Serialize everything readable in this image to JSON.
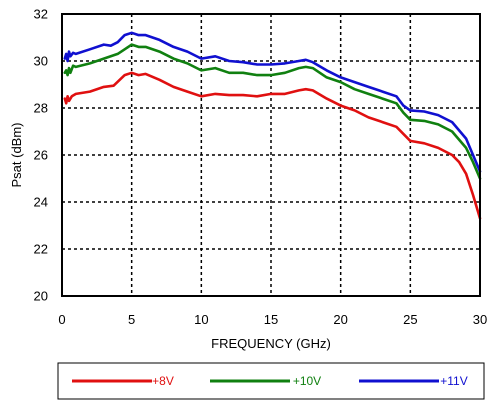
{
  "chart_data": {
    "type": "line",
    "title": "",
    "xlabel": "FREQUENCY (GHz)",
    "ylabel": "Psat (dBm)",
    "xlim": [
      0,
      30
    ],
    "ylim": [
      20,
      32
    ],
    "xticks": [
      0,
      5,
      10,
      15,
      20,
      25,
      30
    ],
    "yticks": [
      20,
      22,
      24,
      26,
      28,
      30,
      32
    ],
    "grid": true,
    "legend_position": "bottom",
    "series": [
      {
        "name": "+8V",
        "color": "#e01010",
        "points": [
          [
            0.2,
            28.4
          ],
          [
            0.3,
            28.2
          ],
          [
            0.4,
            28.5
          ],
          [
            0.5,
            28.3
          ],
          [
            0.7,
            28.5
          ],
          [
            1.0,
            28.6
          ],
          [
            2.0,
            28.7
          ],
          [
            3.0,
            28.9
          ],
          [
            3.7,
            28.95
          ],
          [
            4.5,
            29.4
          ],
          [
            5.0,
            29.5
          ],
          [
            5.5,
            29.4
          ],
          [
            6.0,
            29.45
          ],
          [
            7.0,
            29.2
          ],
          [
            8.0,
            28.9
          ],
          [
            9.0,
            28.7
          ],
          [
            10.0,
            28.5
          ],
          [
            11.0,
            28.6
          ],
          [
            12.0,
            28.55
          ],
          [
            13.0,
            28.55
          ],
          [
            14.0,
            28.5
          ],
          [
            15.0,
            28.6
          ],
          [
            16.0,
            28.6
          ],
          [
            17.0,
            28.75
          ],
          [
            17.5,
            28.8
          ],
          [
            18.0,
            28.75
          ],
          [
            19.0,
            28.4
          ],
          [
            20.0,
            28.1
          ],
          [
            21.0,
            27.9
          ],
          [
            22.0,
            27.6
          ],
          [
            23.0,
            27.4
          ],
          [
            24.0,
            27.2
          ],
          [
            24.5,
            26.9
          ],
          [
            25.0,
            26.6
          ],
          [
            26.0,
            26.5
          ],
          [
            27.0,
            26.3
          ],
          [
            28.0,
            26.0
          ],
          [
            28.5,
            25.7
          ],
          [
            29.0,
            25.2
          ],
          [
            29.5,
            24.3
          ],
          [
            30.0,
            23.3
          ]
        ]
      },
      {
        "name": "+10V",
        "color": "#108010",
        "points": [
          [
            0.2,
            29.5
          ],
          [
            0.3,
            29.6
          ],
          [
            0.4,
            29.4
          ],
          [
            0.5,
            29.7
          ],
          [
            0.6,
            29.5
          ],
          [
            0.8,
            29.8
          ],
          [
            1.0,
            29.75
          ],
          [
            2.0,
            29.9
          ],
          [
            3.0,
            30.1
          ],
          [
            4.0,
            30.3
          ],
          [
            4.5,
            30.5
          ],
          [
            5.0,
            30.7
          ],
          [
            5.5,
            30.6
          ],
          [
            6.0,
            30.6
          ],
          [
            7.0,
            30.4
          ],
          [
            8.0,
            30.1
          ],
          [
            9.0,
            29.9
          ],
          [
            10.0,
            29.6
          ],
          [
            11.0,
            29.7
          ],
          [
            12.0,
            29.5
          ],
          [
            13.0,
            29.5
          ],
          [
            14.0,
            29.4
          ],
          [
            15.0,
            29.4
          ],
          [
            16.0,
            29.5
          ],
          [
            17.0,
            29.7
          ],
          [
            17.5,
            29.75
          ],
          [
            18.0,
            29.7
          ],
          [
            19.0,
            29.3
          ],
          [
            20.0,
            29.1
          ],
          [
            21.0,
            28.8
          ],
          [
            22.0,
            28.6
          ],
          [
            23.0,
            28.4
          ],
          [
            24.0,
            28.2
          ],
          [
            24.5,
            27.8
          ],
          [
            25.0,
            27.5
          ],
          [
            26.0,
            27.45
          ],
          [
            27.0,
            27.3
          ],
          [
            28.0,
            27.0
          ],
          [
            29.0,
            26.3
          ],
          [
            29.5,
            25.7
          ],
          [
            30.0,
            25.0
          ]
        ]
      },
      {
        "name": "+11V",
        "color": "#1010d0",
        "points": [
          [
            0.2,
            30.1
          ],
          [
            0.3,
            30.3
          ],
          [
            0.4,
            30.0
          ],
          [
            0.5,
            30.4
          ],
          [
            0.6,
            30.2
          ],
          [
            0.8,
            30.35
          ],
          [
            1.0,
            30.3
          ],
          [
            2.0,
            30.5
          ],
          [
            3.0,
            30.7
          ],
          [
            3.5,
            30.65
          ],
          [
            4.0,
            30.8
          ],
          [
            4.5,
            31.1
          ],
          [
            5.0,
            31.2
          ],
          [
            5.5,
            31.1
          ],
          [
            6.0,
            31.1
          ],
          [
            7.0,
            30.9
          ],
          [
            8.0,
            30.6
          ],
          [
            9.0,
            30.4
          ],
          [
            10.0,
            30.1
          ],
          [
            11.0,
            30.2
          ],
          [
            12.0,
            30.0
          ],
          [
            13.0,
            29.95
          ],
          [
            14.0,
            29.85
          ],
          [
            15.0,
            29.85
          ],
          [
            16.0,
            29.9
          ],
          [
            17.0,
            30.0
          ],
          [
            17.5,
            30.05
          ],
          [
            18.0,
            29.95
          ],
          [
            19.0,
            29.6
          ],
          [
            20.0,
            29.3
          ],
          [
            21.0,
            29.1
          ],
          [
            22.0,
            28.9
          ],
          [
            23.0,
            28.7
          ],
          [
            24.0,
            28.5
          ],
          [
            24.5,
            28.1
          ],
          [
            25.0,
            27.9
          ],
          [
            26.0,
            27.85
          ],
          [
            27.0,
            27.7
          ],
          [
            28.0,
            27.4
          ],
          [
            29.0,
            26.7
          ],
          [
            29.5,
            26.0
          ],
          [
            30.0,
            25.3
          ]
        ]
      }
    ]
  }
}
